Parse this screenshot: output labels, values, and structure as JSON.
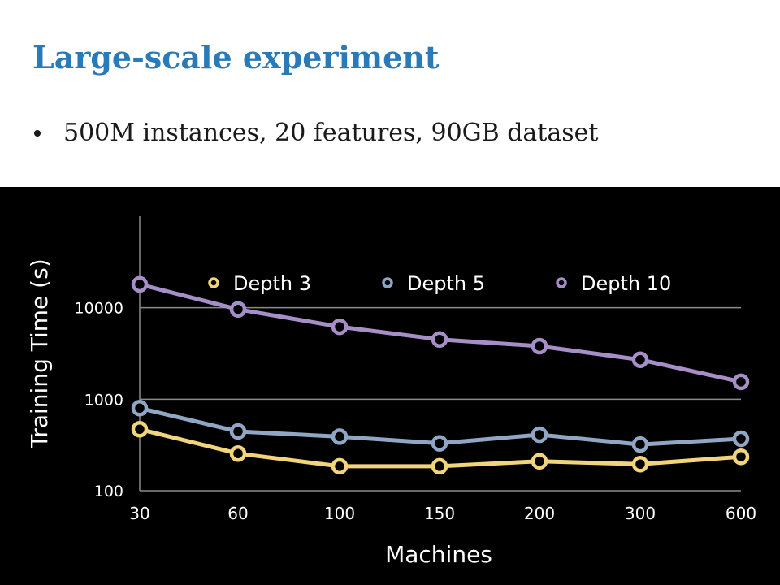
{
  "slide": {
    "title": "Large-scale experiment",
    "bullets": [
      "500M instances, 20 features, 90GB dataset"
    ]
  },
  "chart_data": {
    "type": "line",
    "x_scale": "categorical",
    "y_scale": "log",
    "categories": [
      "30",
      "60",
      "100",
      "150",
      "200",
      "300",
      "600"
    ],
    "series": [
      {
        "name": "Depth 3",
        "color": "#f2d57a",
        "values": [
          470,
          255,
          185,
          185,
          210,
          195,
          235
        ]
      },
      {
        "name": "Depth 5",
        "color": "#8fa6c4",
        "values": [
          800,
          445,
          390,
          330,
          410,
          320,
          370
        ]
      },
      {
        "name": "Depth 10",
        "color": "#a58fc6",
        "values": [
          18000,
          9600,
          6200,
          4500,
          3800,
          2700,
          1550
        ]
      }
    ],
    "xlabel": "Machines",
    "ylabel": "Training Time (s)",
    "yticks": [
      100,
      1000,
      10000
    ],
    "ylim": [
      100,
      100000
    ],
    "grid": "horizontal",
    "legend_position": "top",
    "background": "#000000"
  }
}
